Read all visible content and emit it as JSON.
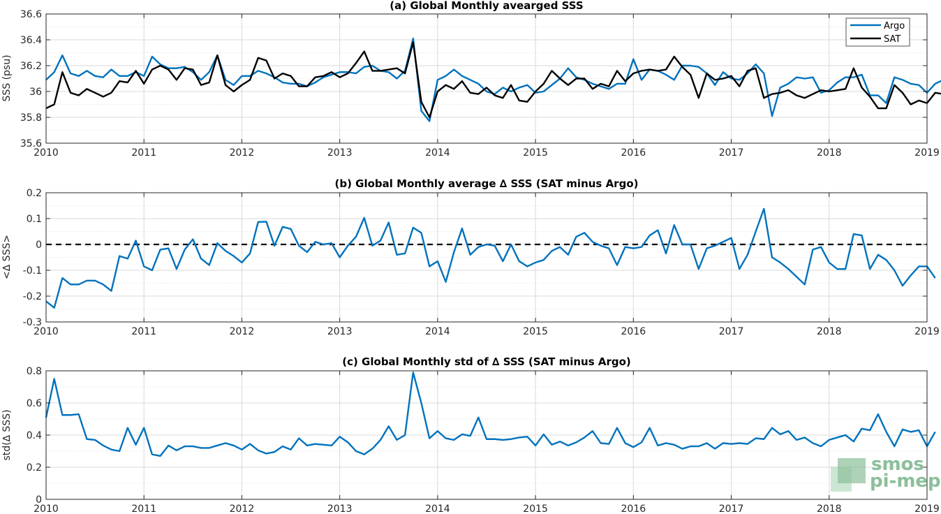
{
  "chart_data": [
    {
      "type": "line",
      "title": "(a) Global Monthly avearged SSS",
      "ylabel": "SSS (psu)",
      "xlim": [
        2010,
        2019
      ],
      "ylim": [
        35.6,
        36.6
      ],
      "xticks": [
        2010,
        2011,
        2012,
        2013,
        2014,
        2015,
        2016,
        2017,
        2018,
        2019
      ],
      "xtick_labels": [
        "2010",
        "2011",
        "2012",
        "2013",
        "2014",
        "2015",
        "2016",
        "2017",
        "2018",
        "2019"
      ],
      "yticks": [
        35.6,
        35.8,
        36.0,
        36.2,
        36.4,
        36.6
      ],
      "ytick_labels": [
        "35.6",
        "35.8",
        "36",
        "36.2",
        "36.4",
        "36.6"
      ],
      "grid": true,
      "legend": "top-right",
      "series": [
        {
          "name": "Argo",
          "color": "#0072BD",
          "x_start": 2010.0,
          "x_step": 0.083333,
          "values": [
            36.09,
            36.15,
            36.28,
            36.14,
            36.12,
            36.16,
            36.12,
            36.11,
            36.17,
            36.12,
            36.12,
            36.15,
            36.12,
            36.27,
            36.21,
            36.18,
            36.18,
            36.19,
            36.15,
            36.09,
            36.15,
            36.28,
            36.09,
            36.05,
            36.12,
            36.12,
            36.16,
            36.14,
            36.11,
            36.07,
            36.06,
            36.06,
            36.04,
            36.07,
            36.11,
            36.13,
            36.15,
            36.15,
            36.14,
            36.19,
            36.2,
            36.16,
            36.15,
            36.1,
            36.16,
            36.41,
            35.85,
            35.77,
            36.09,
            36.12,
            36.17,
            36.12,
            36.09,
            36.06,
            36.0,
            35.98,
            36.03,
            36.0,
            36.03,
            36.05,
            35.99,
            36.0,
            36.05,
            36.1,
            36.18,
            36.11,
            36.09,
            36.06,
            36.04,
            36.02,
            36.06,
            36.06,
            36.25,
            36.09,
            36.17,
            36.16,
            36.13,
            36.09,
            36.2,
            36.2,
            36.19,
            36.14,
            36.05,
            36.15,
            36.1,
            36.09,
            36.14,
            36.21,
            36.14,
            35.81,
            36.03,
            36.06,
            36.11,
            36.1,
            36.11,
            35.99,
            36.01,
            36.07,
            36.11,
            36.11,
            36.13,
            35.97,
            35.97,
            35.91,
            36.11,
            36.09,
            36.06,
            36.05,
            35.99,
            36.06,
            36.09
          ]
        },
        {
          "name": "SAT",
          "color": "#000000",
          "x_start": 2010.0,
          "x_step": 0.083333,
          "values": [
            35.87,
            35.9,
            36.15,
            35.99,
            35.97,
            36.02,
            35.99,
            35.96,
            35.99,
            36.08,
            36.07,
            36.16,
            36.06,
            36.17,
            36.2,
            36.17,
            36.09,
            36.18,
            36.17,
            36.05,
            36.07,
            36.28,
            36.05,
            36.0,
            36.05,
            36.09,
            36.26,
            36.24,
            36.1,
            36.14,
            36.12,
            36.04,
            36.04,
            36.11,
            36.12,
            36.15,
            36.11,
            36.14,
            36.22,
            36.31,
            36.16,
            36.16,
            36.17,
            36.18,
            36.14,
            36.38,
            35.92,
            35.8,
            36.0,
            36.05,
            36.02,
            36.08,
            35.99,
            35.98,
            36.03,
            35.97,
            35.95,
            36.05,
            35.93,
            35.92,
            36.0,
            36.06,
            36.16,
            36.1,
            36.05,
            36.1,
            36.1,
            36.02,
            36.06,
            36.04,
            36.16,
            36.08,
            36.14,
            36.16,
            36.17,
            36.16,
            36.17,
            36.27,
            36.19,
            36.13,
            35.95,
            36.14,
            36.09,
            36.1,
            36.12,
            36.04,
            36.16,
            36.18,
            35.95,
            35.98,
            35.99,
            36.01,
            35.97,
            35.95,
            35.98,
            36.01,
            36.0,
            36.01,
            36.02,
            36.18,
            36.03,
            35.96,
            35.87,
            35.87,
            36.05,
            35.99,
            35.9,
            35.93,
            35.91,
            35.99,
            35.98
          ]
        }
      ]
    },
    {
      "type": "line",
      "title": "(b) Global Monthly average ∆ SSS (SAT minus Argo)",
      "ylabel": "<∆ SSS>",
      "xlim": [
        2010,
        2019
      ],
      "ylim": [
        -0.3,
        0.2
      ],
      "xticks": [
        2010,
        2011,
        2012,
        2013,
        2014,
        2015,
        2016,
        2017,
        2018,
        2019
      ],
      "xtick_labels": [
        "2010",
        "2011",
        "2012",
        "2013",
        "2014",
        "2015",
        "2016",
        "2017",
        "2018",
        "2019"
      ],
      "yticks": [
        -0.3,
        -0.2,
        -0.1,
        0.0,
        0.1,
        0.2
      ],
      "ytick_labels": [
        "-0.3",
        "-0.2",
        "-0.1",
        "0",
        "0.1",
        "0.2"
      ],
      "grid": true,
      "reference_line": 0,
      "series": [
        {
          "name": "",
          "color": "#0072BD",
          "x_start": 2010.0,
          "x_step": 0.083333,
          "values": [
            -0.22,
            -0.245,
            -0.13,
            -0.155,
            -0.155,
            -0.14,
            -0.14,
            -0.155,
            -0.18,
            -0.045,
            -0.055,
            0.015,
            -0.085,
            -0.1,
            -0.02,
            -0.015,
            -0.095,
            -0.02,
            0.02,
            -0.055,
            -0.08,
            0.005,
            -0.025,
            -0.045,
            -0.07,
            -0.035,
            0.087,
            0.088,
            -0.005,
            0.068,
            0.06,
            -0.005,
            -0.03,
            0.01,
            0.0,
            0.005,
            -0.05,
            -0.005,
            0.03,
            0.103,
            -0.005,
            0.015,
            0.085,
            -0.04,
            -0.035,
            0.065,
            0.045,
            -0.085,
            -0.065,
            -0.145,
            -0.03,
            0.062,
            -0.04,
            -0.01,
            0.0,
            -0.005,
            -0.065,
            0.0,
            -0.065,
            -0.085,
            -0.07,
            -0.06,
            -0.025,
            -0.01,
            -0.04,
            0.03,
            0.045,
            0.01,
            -0.005,
            -0.015,
            -0.08,
            -0.01,
            -0.015,
            -0.01,
            0.035,
            0.055,
            -0.035,
            0.075,
            0.0,
            0.0,
            -0.095,
            -0.015,
            -0.005,
            0.01,
            0.025,
            -0.095,
            -0.04,
            0.05,
            0.138,
            -0.05,
            -0.07,
            -0.095,
            -0.125,
            -0.155,
            -0.02,
            -0.01,
            -0.07,
            -0.095,
            -0.095,
            0.04,
            0.035,
            -0.095,
            -0.04,
            -0.06,
            -0.1,
            -0.16,
            -0.12,
            -0.085,
            -0.085,
            -0.13
          ]
        }
      ]
    },
    {
      "type": "line",
      "title": "(c) Global Monthly std of ∆ SSS (SAT minus Argo)",
      "ylabel": "std(∆ SSS)",
      "xlim": [
        2010,
        2019
      ],
      "ylim": [
        0,
        0.8
      ],
      "xticks": [
        2010,
        2011,
        2012,
        2013,
        2014,
        2015,
        2016,
        2017,
        2018,
        2019
      ],
      "xtick_labels": [
        "2010",
        "2011",
        "2012",
        "2013",
        "2014",
        "2015",
        "2016",
        "2017",
        "2018",
        "2019"
      ],
      "yticks": [
        0,
        0.2,
        0.4,
        0.6,
        0.8
      ],
      "ytick_labels": [
        "0",
        "0.2",
        "0.4",
        "0.6",
        "0.8"
      ],
      "grid": true,
      "series": [
        {
          "name": "",
          "color": "#0072BD",
          "x_start": 2010.0,
          "x_step": 0.083333,
          "values": [
            0.51,
            0.75,
            0.525,
            0.525,
            0.53,
            0.375,
            0.37,
            0.335,
            0.31,
            0.3,
            0.445,
            0.34,
            0.445,
            0.28,
            0.27,
            0.335,
            0.305,
            0.33,
            0.33,
            0.32,
            0.32,
            0.335,
            0.35,
            0.335,
            0.31,
            0.345,
            0.305,
            0.285,
            0.295,
            0.33,
            0.31,
            0.38,
            0.335,
            0.345,
            0.34,
            0.335,
            0.39,
            0.355,
            0.3,
            0.28,
            0.315,
            0.37,
            0.455,
            0.37,
            0.4,
            0.79,
            0.6,
            0.38,
            0.425,
            0.38,
            0.37,
            0.405,
            0.395,
            0.51,
            0.375,
            0.375,
            0.37,
            0.375,
            0.385,
            0.39,
            0.335,
            0.405,
            0.34,
            0.36,
            0.335,
            0.355,
            0.385,
            0.425,
            0.35,
            0.345,
            0.445,
            0.35,
            0.325,
            0.355,
            0.445,
            0.335,
            0.35,
            0.34,
            0.315,
            0.33,
            0.33,
            0.35,
            0.315,
            0.35,
            0.345,
            0.35,
            0.345,
            0.38,
            0.375,
            0.445,
            0.405,
            0.425,
            0.37,
            0.385,
            0.35,
            0.33,
            0.37,
            0.385,
            0.4,
            0.36,
            0.44,
            0.43,
            0.53,
            0.42,
            0.33,
            0.435,
            0.42,
            0.43,
            0.33,
            0.42
          ]
        }
      ]
    }
  ],
  "logo": {
    "line1": "smos",
    "line2": "pi-mep"
  }
}
